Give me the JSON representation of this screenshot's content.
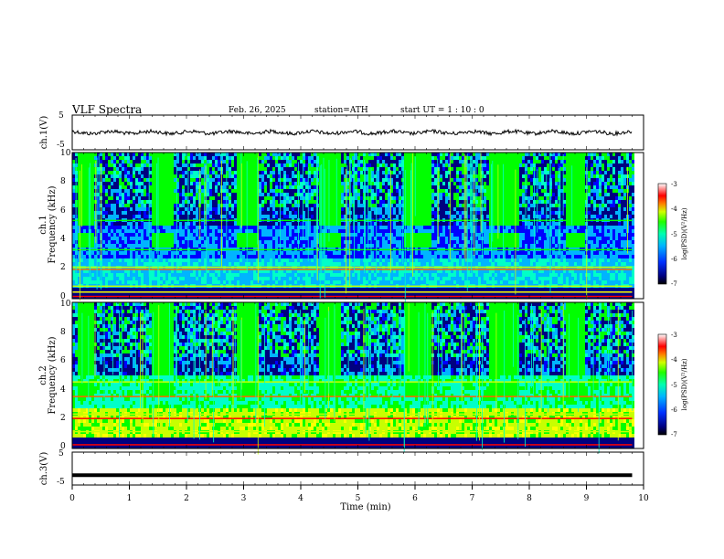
{
  "header": {
    "title": "VLF  Spectra",
    "date": "Feb. 26, 2025",
    "station": "station=ATH",
    "start": "start  UT  =   1  : 10 : 0"
  },
  "chart_data": [
    {
      "type": "line",
      "title": "",
      "ylabel": "ch.1(V)",
      "ylim": [
        -5,
        5
      ],
      "yticks": [
        "5",
        "-5"
      ],
      "xlabel": "",
      "xlim": [
        0,
        10
      ],
      "series": [
        {
          "values_description_none": true
        }
      ],
      "approx_level_V": 0.0,
      "x_end_min": 9.8
    },
    {
      "type": "heatmap",
      "ylabel": "ch.1\nFrequency  (kHz)",
      "ylim": [
        0,
        10
      ],
      "yticks": [
        "0",
        "2",
        "4",
        "6",
        "8",
        "10"
      ],
      "xlim": [
        0,
        10
      ],
      "x_end_min": 9.8,
      "burst_intervals_min": [
        [
          0.05,
          0.35
        ],
        [
          1.35,
          1.75
        ],
        [
          2.85,
          3.25
        ],
        [
          4.3,
          4.7
        ],
        [
          5.8,
          6.25
        ],
        [
          7.25,
          7.8
        ],
        [
          8.6,
          8.95
        ]
      ],
      "burst_band_kHz": [
        3.5,
        4.4
      ],
      "colorbar": {
        "label": "log(PSD)(V²/Hz)",
        "range": [
          -7,
          -3
        ],
        "ticks": [
          "-3",
          "-4",
          "-5",
          "-6",
          "-7"
        ]
      }
    },
    {
      "type": "heatmap",
      "ylabel": "ch.2\nFrequency  (kHz)",
      "ylim": [
        0,
        10
      ],
      "yticks": [
        "0",
        "2",
        "4",
        "6",
        "8",
        "10"
      ],
      "xlim": [
        0,
        10
      ],
      "x_end_min": 9.8,
      "burst_intervals_min": [
        [
          0.05,
          0.35
        ],
        [
          1.35,
          1.75
        ],
        [
          2.85,
          3.25
        ],
        [
          4.3,
          4.7
        ],
        [
          5.8,
          6.25
        ],
        [
          7.25,
          7.8
        ],
        [
          8.6,
          8.95
        ]
      ],
      "burst_band_kHz": [
        3.5,
        4.4
      ],
      "colorbar": {
        "label": "log(PSD)(V²/Hz)",
        "range": [
          -7,
          -3
        ],
        "ticks": [
          "-3",
          "-4",
          "-5",
          "-6",
          "-7"
        ]
      }
    },
    {
      "type": "line",
      "ylabel": "ch.3(V)",
      "ylim": [
        -5,
        5
      ],
      "yticks": [
        "5",
        "-5"
      ],
      "xlim": [
        0,
        10
      ],
      "approx_level_V": -2.0,
      "x_end_min": 9.8
    }
  ],
  "x_axis": {
    "label": "Time  (min)",
    "ticks": [
      "0",
      "1",
      "2",
      "3",
      "4",
      "5",
      "6",
      "7",
      "8",
      "9",
      "10"
    ]
  },
  "colors": {
    "colormap": [
      "#000080",
      "#0000ff",
      "#00b4ff",
      "#00ffc8",
      "#00ff00",
      "#c8ff00",
      "#ffff00",
      "#ff6000",
      "#ff0000",
      "#ffffff"
    ]
  }
}
